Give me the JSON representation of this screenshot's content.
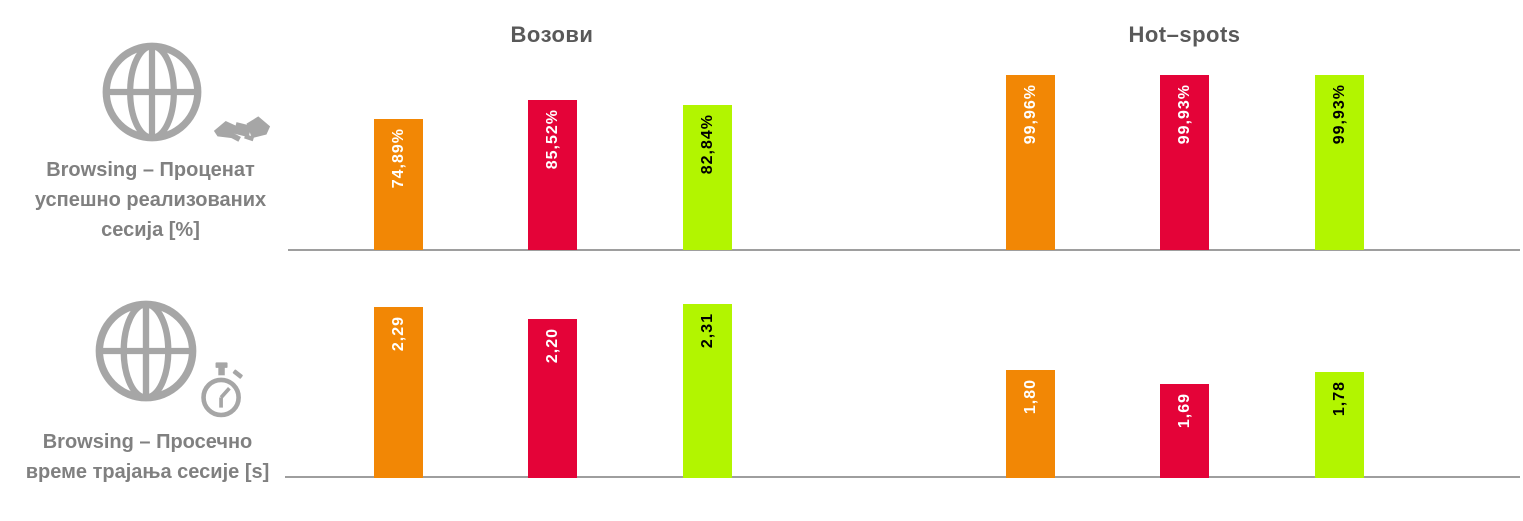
{
  "page": {
    "background": "#FFFFFF"
  },
  "column_titles": [
    "Возови",
    "Hot–spots"
  ],
  "chart_data": [
    {
      "type": "bar",
      "row_label": "Browsing – Проценат успешно реализованих сесија [%]",
      "row_label_lines": [
        "Browsing – Проценат",
        "успешно реализованих",
        "сесија [%]"
      ],
      "row_icons": [
        "globe-icon",
        "handshake-icon"
      ],
      "ylim": [
        0,
        100
      ],
      "grid": false,
      "legend": "none",
      "groups": [
        {
          "title": "Возови",
          "values": [
            74.89,
            85.52,
            82.84
          ],
          "value_labels": [
            "74,89%",
            "85,52%",
            "82,84%"
          ]
        },
        {
          "title": "Hot–spots",
          "values": [
            99.96,
            99.93,
            99.93
          ],
          "value_labels": [
            "99,96%",
            "99,93%",
            "99,93%"
          ]
        }
      ]
    },
    {
      "type": "bar",
      "row_label": "Browsing – Просечно време трајања сесије [s]",
      "row_label_lines": [
        "Browsing – Просечно",
        "време трајања сесије [s]"
      ],
      "row_icons": [
        "globe-icon",
        "stopwatch-icon"
      ],
      "ylim": [
        0.95,
        2.4
      ],
      "grid": false,
      "legend": "none",
      "groups": [
        {
          "title": "Возови",
          "values": [
            2.29,
            2.2,
            2.31
          ],
          "value_labels": [
            "2,29",
            "2,20",
            "2,31"
          ]
        },
        {
          "title": "Hot–spots",
          "values": [
            1.8,
            1.69,
            1.78
          ],
          "value_labels": [
            "1,80",
            "1,69",
            "1,78"
          ]
        }
      ]
    }
  ],
  "style": {
    "bar_colors": [
      "#F28705",
      "#E40338",
      "#B2F500"
    ],
    "bar_label_colors": [
      "#FFFFFF",
      "#FFFFFF",
      "#000000"
    ],
    "axis_color": "#9E9E9E",
    "title_color": "#595959",
    "row_label_color": "#808080",
    "icon_color": "#A6A6A6"
  }
}
